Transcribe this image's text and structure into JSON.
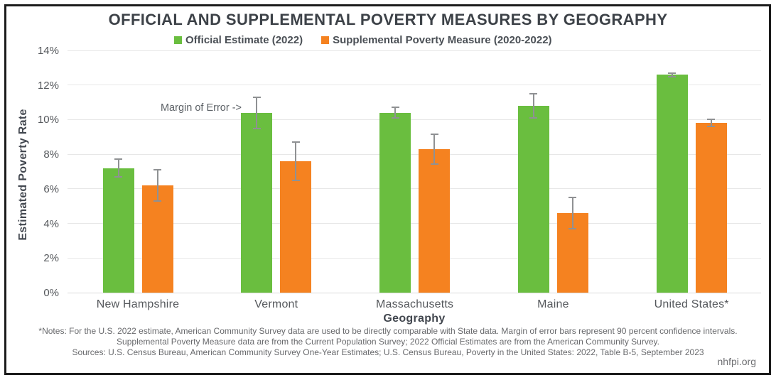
{
  "chart_data": {
    "type": "bar",
    "title": "OFFICIAL AND SUPPLEMENTAL POVERTY MEASURES BY GEOGRAPHY",
    "xlabel": "Geography",
    "ylabel": "Estimated Poverty Rate",
    "ylim": [
      0,
      14
    ],
    "ytick_step": 2,
    "ytick_suffix": "%",
    "grid": true,
    "legend_position": "top-center",
    "annotation": "Margin of Error ->",
    "categories": [
      "New Hampshire",
      "Vermont",
      "Massachusetts",
      "Maine",
      "United States*"
    ],
    "series": [
      {
        "name": "Official Estimate (2022)",
        "color": "#6abe3f",
        "values": [
          7.2,
          10.4,
          10.4,
          10.8,
          12.6
        ],
        "margin_of_error": [
          0.5,
          0.9,
          0.3,
          0.7,
          0.1
        ]
      },
      {
        "name": "Supplemental Poverty Measure (2020-2022)",
        "color": "#f58220",
        "values": [
          6.2,
          7.6,
          8.3,
          4.6,
          9.8
        ],
        "margin_of_error": [
          0.9,
          1.1,
          0.85,
          0.9,
          0.2
        ]
      }
    ]
  },
  "notes": {
    "line1": "*Notes: For the U.S. 2022 estimate, American Community Survey data are used to be directly comparable with State data. Margin of error bars represent 90 percent confidence intervals.",
    "line2": "Supplemental Poverty Measure data are from the Current Population Survey; 2022 Official Estimates are from the American Community Survey.",
    "line3": "Sources: U.S. Census Bureau, American Community Survey One-Year Estimates; U.S. Census Bureau, Poverty in the United States: 2022, Table B-5, September 2023"
  },
  "footer": {
    "site": "nhfpi.org"
  },
  "colors": {
    "official": "#6abe3f",
    "supplemental": "#f58220",
    "error_bar": "#8f9193",
    "gridline": "#e7e7e7",
    "title_text": "#3d4248",
    "axis_text": "#55585c",
    "border": "#1c1c1c"
  }
}
